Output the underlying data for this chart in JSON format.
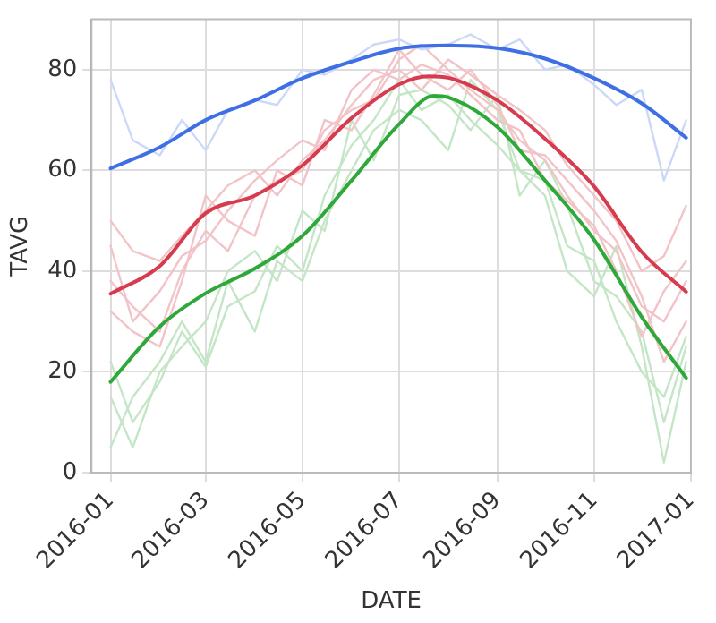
{
  "chart_data": {
    "type": "line",
    "xlabel": "DATE",
    "ylabel": "TAVG",
    "xlim": [
      "2015-12-20",
      "2017-01-01"
    ],
    "xticks": [
      "2016-01",
      "2016-03",
      "2016-05",
      "2016-07",
      "2016-09",
      "2016-11",
      "2017-01"
    ],
    "ylim": [
      0,
      90
    ],
    "yticks": [
      0,
      20,
      40,
      60,
      80
    ],
    "grid": true,
    "legend": false,
    "marker": "none",
    "line_style": "solid",
    "x": [
      "2016-01-01",
      "2016-01-15",
      "2016-02-01",
      "2016-02-15",
      "2016-03-01",
      "2016-03-15",
      "2016-04-01",
      "2016-04-15",
      "2016-05-01",
      "2016-05-15",
      "2016-06-01",
      "2016-06-15",
      "2016-07-01",
      "2016-07-15",
      "2016-08-01",
      "2016-08-15",
      "2016-09-01",
      "2016-09-15",
      "2016-10-01",
      "2016-10-15",
      "2016-11-01",
      "2016-11-15",
      "2016-12-01",
      "2016-12-15",
      "2016-12-29"
    ],
    "series": [
      {
        "color": "#cbd8f7",
        "values": [
          78,
          66,
          63,
          70,
          64,
          72,
          74,
          73,
          80,
          79,
          82,
          85,
          86,
          84,
          85,
          87,
          84,
          86,
          80,
          81,
          77,
          73,
          76,
          58,
          70
        ]
      },
      {
        "color": "#f2c3c7",
        "values": [
          50,
          44,
          42,
          47,
          52,
          57,
          60,
          55,
          62,
          66,
          73,
          78,
          80,
          76,
          82,
          79,
          75,
          72,
          68,
          61,
          55,
          50,
          40,
          43,
          53
        ]
      },
      {
        "color": "#f2c3c7",
        "values": [
          38,
          33,
          28,
          40,
          48,
          44,
          55,
          58,
          60,
          68,
          72,
          74,
          82,
          85,
          80,
          76,
          72,
          66,
          62,
          55,
          48,
          44,
          33,
          30,
          38
        ]
      },
      {
        "color": "#f2c3c7",
        "values": [
          45,
          30,
          36,
          43,
          46,
          52,
          58,
          62,
          66,
          64,
          76,
          80,
          78,
          81,
          79,
          75,
          70,
          68,
          58,
          54,
          49,
          40,
          27,
          36,
          42
        ]
      },
      {
        "color": "#f2c3c7",
        "values": [
          32,
          28,
          25,
          38,
          55,
          50,
          47,
          60,
          57,
          70,
          68,
          75,
          84,
          79,
          76,
          80,
          73,
          64,
          63,
          58,
          52,
          46,
          35,
          22,
          30
        ]
      },
      {
        "color": "#c4e6c6",
        "values": [
          5,
          15,
          22,
          30,
          22,
          38,
          28,
          42,
          38,
          50,
          60,
          68,
          72,
          70,
          64,
          78,
          72,
          60,
          55,
          40,
          35,
          45,
          25,
          2,
          22
        ]
      },
      {
        "color": "#c4e6c6",
        "values": [
          22,
          10,
          18,
          28,
          21,
          33,
          36,
          45,
          40,
          55,
          65,
          70,
          78,
          72,
          75,
          70,
          65,
          60,
          58,
          45,
          42,
          30,
          20,
          15,
          27
        ]
      },
      {
        "color": "#c4e6c6",
        "values": [
          15,
          5,
          20,
          25,
          30,
          40,
          44,
          38,
          52,
          48,
          70,
          62,
          75,
          76,
          73,
          68,
          75,
          55,
          62,
          53,
          38,
          35,
          28,
          10,
          25
        ]
      },
      {
        "color": "#3f6fe4",
        "x": [
          "2016-01-01",
          "2016-02-01",
          "2016-03-01",
          "2016-04-01",
          "2016-05-01",
          "2016-06-01",
          "2016-07-01",
          "2016-08-01",
          "2016-09-01",
          "2016-10-01",
          "2016-11-01",
          "2016-12-01",
          "2016-12-29"
        ],
        "values": [
          60.4,
          64.6,
          70,
          73.9,
          78.3,
          81.6,
          84.2,
          84.8,
          84.3,
          82.2,
          78.3,
          73.3,
          66.5
        ]
      },
      {
        "color": "#d63c4e",
        "x": [
          "2016-01-01",
          "2016-02-01",
          "2016-03-01",
          "2016-04-01",
          "2016-05-01",
          "2016-06-01",
          "2016-07-01",
          "2016-07-20",
          "2016-08-01",
          "2016-09-01",
          "2016-10-01",
          "2016-11-01",
          "2016-12-01",
          "2016-12-29"
        ],
        "values": [
          35.5,
          41,
          51.5,
          55,
          61,
          70.4,
          77.1,
          78.7,
          78.4,
          73.9,
          66.3,
          56.8,
          43.8,
          35.9
        ]
      },
      {
        "color": "#2fa83a",
        "x": [
          "2016-01-01",
          "2016-02-01",
          "2016-03-01",
          "2016-04-01",
          "2016-05-01",
          "2016-06-01",
          "2016-07-01",
          "2016-07-23",
          "2016-08-01",
          "2016-09-01",
          "2016-10-01",
          "2016-11-01",
          "2016-12-01",
          "2016-12-29"
        ],
        "values": [
          18,
          29,
          35.6,
          40.5,
          47,
          58,
          69.2,
          74.8,
          74.5,
          68.6,
          58,
          46.2,
          30.9,
          18.8
        ]
      }
    ]
  }
}
